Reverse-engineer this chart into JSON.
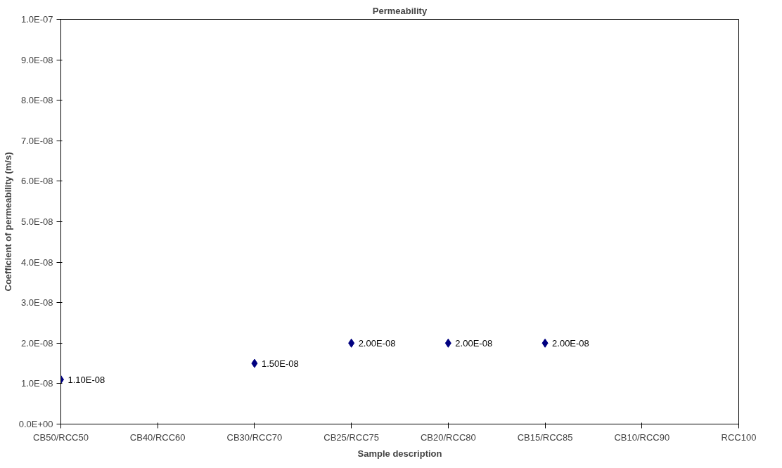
{
  "chart_data": {
    "type": "scatter",
    "title": "Permeability",
    "xlabel": "Sample description",
    "ylabel": "Coefficient of permeability (m/s)",
    "categories": [
      "CB50/RCC50",
      "CB40/RCC60",
      "CB30/RCC70",
      "CB25/RCC75",
      "CB20/RCC80",
      "CB15/RCC85",
      "CB10/RCC90",
      "RCC100"
    ],
    "series": [
      {
        "color": "#000080",
        "values": [
          1.1e-08,
          null,
          1.5e-08,
          2e-08,
          2e-08,
          2e-08,
          null,
          null
        ],
        "value_labels": [
          "1.10E-08",
          null,
          "1.50E-08",
          "2.00E-08",
          "2.00E-08",
          "2.00E-08",
          null,
          null
        ]
      }
    ],
    "marker": "diamond",
    "grid": false,
    "ylim": [
      0,
      1e-07
    ],
    "yticks": [
      {
        "value": 0,
        "label": "0.0E+00"
      },
      {
        "value": 1e-08,
        "label": "1.0E-08"
      },
      {
        "value": 2e-08,
        "label": "2.0E-08"
      },
      {
        "value": 3e-08,
        "label": "3.0E-08"
      },
      {
        "value": 4e-08,
        "label": "4.0E-08"
      },
      {
        "value": 5e-08,
        "label": "5.0E-08"
      },
      {
        "value": 6e-08,
        "label": "6.0E-08"
      },
      {
        "value": 7e-08,
        "label": "7.0E-08"
      },
      {
        "value": 8e-08,
        "label": "8.0E-08"
      },
      {
        "value": 9e-08,
        "label": "9.0E-08"
      },
      {
        "value": 1e-07,
        "label": "1.0E-07"
      }
    ]
  }
}
